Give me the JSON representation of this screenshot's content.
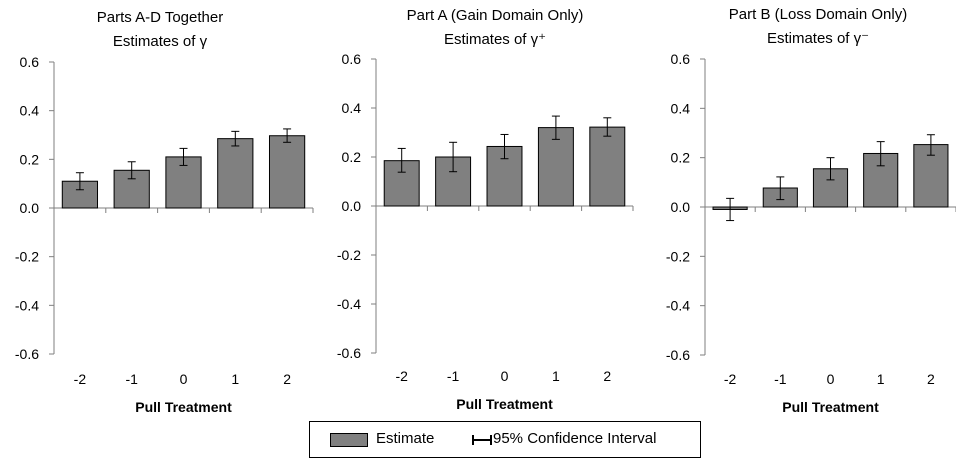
{
  "chart_data": [
    {
      "type": "bar",
      "title": "Parts A-D Together",
      "subtitle": "Estimates of γ",
      "xlabel": "Pull Treatment",
      "ylabel": "",
      "categories": [
        "-2",
        "-1",
        "0",
        "1",
        "2"
      ],
      "values": [
        0.11,
        0.155,
        0.21,
        0.285,
        0.297
      ],
      "ci_low": [
        0.075,
        0.12,
        0.175,
        0.255,
        0.27
      ],
      "ci_high": [
        0.145,
        0.19,
        0.245,
        0.315,
        0.325
      ],
      "ylim": [
        -0.6,
        0.6
      ],
      "yticks": [
        "0.6",
        "0.4",
        "0.2",
        "0.0",
        "-0.2",
        "-0.4",
        "-0.6"
      ],
      "grid": false
    },
    {
      "type": "bar",
      "title": "Part A (Gain Domain Only)",
      "subtitle": "Estimates of γ⁺",
      "xlabel": "Pull Treatment",
      "ylabel": "",
      "categories": [
        "-2",
        "-1",
        "0",
        "1",
        "2"
      ],
      "values": [
        0.185,
        0.2,
        0.243,
        0.32,
        0.322
      ],
      "ci_low": [
        0.138,
        0.14,
        0.193,
        0.272,
        0.285
      ],
      "ci_high": [
        0.235,
        0.26,
        0.292,
        0.367,
        0.36
      ],
      "ylim": [
        -0.6,
        0.6
      ],
      "yticks": [
        "0.6",
        "0.4",
        "0.2",
        "0.0",
        "-0.2",
        "-0.4",
        "-0.6"
      ],
      "grid": false
    },
    {
      "type": "bar",
      "title": "Part B (Loss Domain Only)",
      "subtitle": "Estimates of γ⁻",
      "xlabel": "Pull Treatment",
      "ylabel": "",
      "categories": [
        "-2",
        "-1",
        "0",
        "1",
        "2"
      ],
      "values": [
        -0.01,
        0.077,
        0.155,
        0.217,
        0.253
      ],
      "ci_low": [
        -0.055,
        0.03,
        0.11,
        0.167,
        0.21
      ],
      "ci_high": [
        0.035,
        0.122,
        0.2,
        0.265,
        0.293
      ],
      "ylim": [
        -0.6,
        0.6
      ],
      "yticks": [
        "0.6",
        "0.4",
        "0.2",
        "0.0",
        "-0.2",
        "-0.4",
        "-0.6"
      ],
      "grid": false
    }
  ],
  "legend": {
    "estimate_label": "Estimate",
    "ci_label": "95% Confidence Interval"
  },
  "colors": {
    "bar_fill": "#808080",
    "bar_stroke": "#000000",
    "axis": "#7f7f7f",
    "error_bar": "#000000"
  }
}
